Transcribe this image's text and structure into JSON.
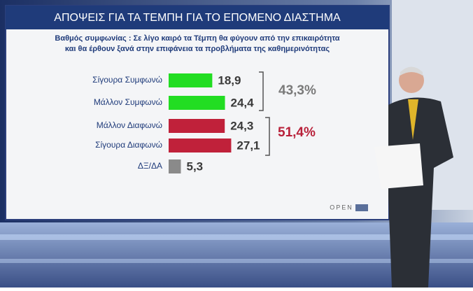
{
  "chart_data": {
    "type": "bar",
    "orientation": "horizontal",
    "title": "ΑΠΟΨΕΙΣ ΓΙΑ ΤΑ ΤΕΜΠΗ ΓΙΑ ΤΟ ΕΠΟΜΕΝΟ ΔΙΑΣΤΗΜΑ",
    "subtitle": [
      "Βαθμός συμφωνίας : Σε λίγο καιρό τα Τέμπη θα φύγουν από την επικαιρότητα",
      "και θα έρθουν ξανά στην επιφάνεια τα προβλήματα της καθημερινότητας"
    ],
    "categories": [
      "Σίγουρα Συμφωνώ",
      "Μάλλον Συμφωνώ",
      "Μάλλον Διαφωνώ",
      "Σίγουρα Διαφωνώ",
      "ΔΞ/ΔΑ"
    ],
    "values": [
      18.9,
      24.4,
      24.3,
      27.1,
      5.3
    ],
    "value_labels": [
      "18,9",
      "24,4",
      "24,3",
      "27,1",
      "5,3"
    ],
    "colors": [
      "#22dd22",
      "#22dd22",
      "#c0213a",
      "#c0213a",
      "#8a8a8a"
    ],
    "groups": [
      {
        "value": 43.3,
        "label": "43,3%",
        "color": "#7a7a7a"
      },
      {
        "value": 51.4,
        "label": "51,4%",
        "color": "#b8213a"
      }
    ],
    "logo": "OPEN"
  }
}
